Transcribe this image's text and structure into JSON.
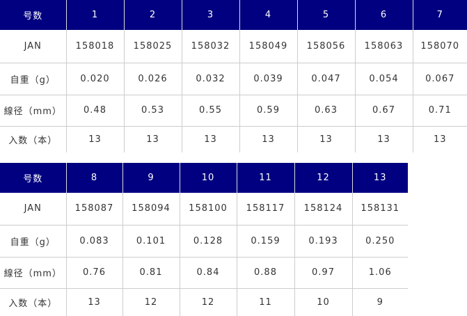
{
  "table1": {
    "header": [
      "号数",
      "1",
      "2",
      "3",
      "4",
      "5",
      "6",
      "7"
    ],
    "rows": [
      [
        "JAN",
        "158018",
        "158025",
        "158032",
        "158049",
        "158056",
        "158063",
        "158070"
      ],
      [
        "自重（g）",
        "0.020",
        "0.026",
        "0.032",
        "0.039",
        "0.047",
        "0.054",
        "0.067"
      ],
      [
        "線径（mm）",
        "0.48",
        "0.53",
        "0.55",
        "0.59",
        "0.63",
        "0.67",
        "0.71"
      ],
      [
        "入数（本）",
        "13",
        "13",
        "13",
        "13",
        "13",
        "13",
        "13"
      ]
    ]
  },
  "table2": {
    "header": [
      "号数",
      "8",
      "9",
      "10",
      "11",
      "12",
      "13"
    ],
    "rows": [
      [
        "JAN",
        "158087",
        "158094",
        "158100",
        "158117",
        "158124",
        "158131"
      ],
      [
        "自重（g）",
        "0.083",
        "0.101",
        "0.128",
        "0.159",
        "0.193",
        "0.250"
      ],
      [
        "線径（mm）",
        "0.76",
        "0.81",
        "0.84",
        "0.88",
        "0.97",
        "1.06"
      ],
      [
        "入数（本）",
        "13",
        "12",
        "12",
        "11",
        "10",
        "9"
      ]
    ]
  },
  "colors": {
    "header_bg": "#000080",
    "border": "#cccccc"
  }
}
